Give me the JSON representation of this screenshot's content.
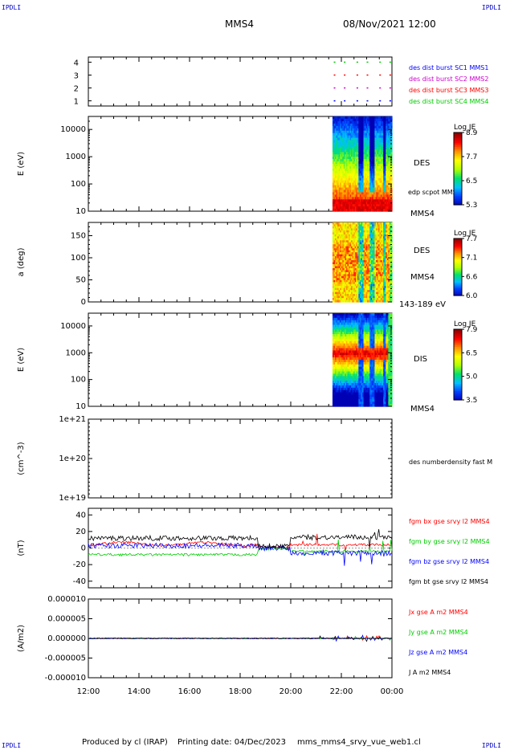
{
  "corner_label": "IPDLI",
  "header": {
    "spacecraft": "MMS4",
    "datetime": "08/Nov/2021 12:00"
  },
  "footer": {
    "produced_by": "Produced by cl (IRAP)",
    "printing_date": "Printing date: 04/Dec/2023",
    "file": "mms_mms4_srvy_vue_web1.cl"
  },
  "time_axis": {
    "tick_labels": [
      "12:00",
      "14:00",
      "16:00",
      "18:00",
      "20:00",
      "22:00",
      "00:00"
    ]
  },
  "colors": {
    "axis": "#000000",
    "cmap": [
      "#0000b4",
      "#0040ff",
      "#00c0ff",
      "#00e070",
      "#b0ff00",
      "#ffff00",
      "#ff9000",
      "#ff0000",
      "#900000"
    ]
  },
  "chart_data": [
    {
      "type": "scatter",
      "id": "burst",
      "ylabel": "",
      "yticks": [
        "1",
        "2",
        "3",
        "4"
      ],
      "ylim": [
        0.6,
        4.4
      ],
      "series": [
        {
          "name": "des dist burst SC1 MMS1",
          "color": "#0000ff",
          "y": 1
        },
        {
          "name": "des dist burst SC2 MMS2",
          "color": "#cc00cc",
          "y": 2
        },
        {
          "name": "des dist burst SC3 MMS3",
          "color": "#ff0000",
          "y": 3
        },
        {
          "name": "des dist burst SC4 MMS4",
          "color": "#00cc00",
          "y": 4
        }
      ],
      "burst_times_h": [
        21.7,
        22.1,
        22.6,
        23.0,
        23.5,
        23.9
      ]
    },
    {
      "type": "heatmap",
      "id": "des-energy",
      "ylabel": "E (eV)",
      "ytick_labels": [
        "10",
        "100",
        "1000",
        "10000"
      ],
      "ylim": [
        10,
        30000
      ],
      "log": true,
      "data_range_h": [
        21.65,
        24.0
      ],
      "label_right": "DES",
      "label_right2": "edp scpot MMS4",
      "label_bottom_right": "MMS4",
      "colorbar": {
        "title": "Log JE",
        "ticks": [
          "8.9",
          "7.7",
          "6.5",
          "5.3"
        ]
      }
    },
    {
      "type": "heatmap",
      "id": "des-pitch",
      "ylabel": "a (deg)",
      "ytick_labels": [
        "0",
        "50",
        "100",
        "150"
      ],
      "ylim": [
        0,
        180
      ],
      "data_range_h": [
        21.65,
        24.0
      ],
      "label_right": "DES",
      "label_right2": "MMS4",
      "label_bottom_right": "143-189 eV",
      "colorbar": {
        "title": "Log JE",
        "ticks": [
          "7.7",
          "7.1",
          "6.6",
          "6.0"
        ]
      }
    },
    {
      "type": "heatmap",
      "id": "dis-energy",
      "ylabel": "E (eV)",
      "ytick_labels": [
        "10",
        "100",
        "1000",
        "10000"
      ],
      "ylim": [
        10,
        30000
      ],
      "log": true,
      "data_range_h": [
        21.65,
        24.0
      ],
      "label_right": "DIS",
      "label_bottom_right": "MMS4",
      "colorbar": {
        "title": "Log JE",
        "ticks": [
          "7.9",
          "6.5",
          "5.0",
          "3.5"
        ]
      }
    },
    {
      "type": "line",
      "id": "density",
      "ylabel": "(cm^-3)",
      "ytick_labels": [
        "1e+19",
        "1e+20",
        "1e+21"
      ],
      "ylim": [
        1e+19,
        1e+21
      ],
      "log": true,
      "series": [
        {
          "name": "des numberdensity fast M",
          "color": "#000000"
        }
      ]
    },
    {
      "type": "line",
      "id": "fgm",
      "ylabel": "(nT)",
      "ytick_labels": [
        "-40",
        "-20",
        "0",
        "20",
        "40"
      ],
      "ylim": [
        -48,
        48
      ],
      "series": [
        {
          "name": "fgm bx gse srvy l2 MMS4",
          "color": "#ff0000"
        },
        {
          "name": "fgm by gse srvy l2 MMS4",
          "color": "#00cc00"
        },
        {
          "name": "fgm bz gse srvy l2 MMS4",
          "color": "#0000ff"
        },
        {
          "name": "fgm bt gse srvy l2 MMS4",
          "color": "#000000"
        }
      ]
    },
    {
      "type": "line",
      "id": "current",
      "ylabel": "(A/m2)",
      "ytick_labels": [
        "-0.000010",
        "-0.000005",
        "0.000000",
        "0.000005",
        "0.000010"
      ],
      "ylim": [
        -1e-05,
        1e-05
      ],
      "series": [
        {
          "name": "Jx gse A m2 MMS4",
          "color": "#ff0000"
        },
        {
          "name": "Jy gse A m2 MMS4",
          "color": "#00cc00"
        },
        {
          "name": "Jz gse A m2 MMS4",
          "color": "#0000ff"
        },
        {
          "name": "J A m2 MMS4",
          "color": "#000000"
        }
      ]
    }
  ]
}
